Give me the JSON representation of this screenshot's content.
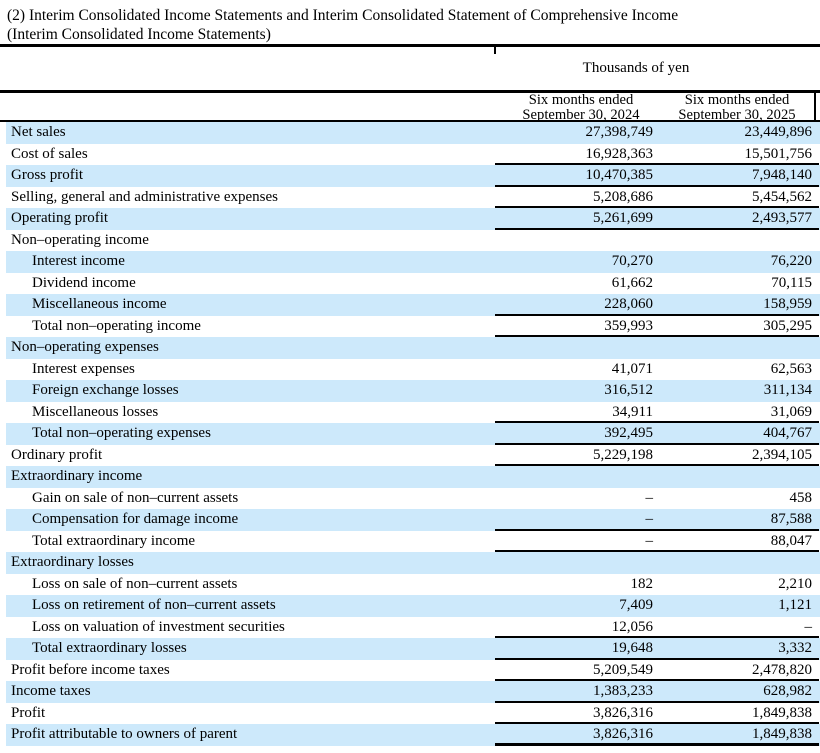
{
  "title": {
    "line1": "(2) Interim Consolidated Income Statements and Interim Consolidated Statement of Comprehensive Income",
    "line2": "(Interim Consolidated Income Statements)"
  },
  "colors": {
    "row_shade": "#cde9fb",
    "rule": "#000000"
  },
  "table": {
    "unit_label": "Thousands of yen",
    "columns": [
      {
        "line1": "Six months ended",
        "line2": "September 30, 2024"
      },
      {
        "line1": "Six months ended",
        "line2": "September 30, 2025"
      }
    ],
    "rows": [
      {
        "label": "Net sales",
        "v2024": "27,398,749",
        "v2025": "23,449,896",
        "indent": false,
        "shaded": true,
        "section": false,
        "rule": "none"
      },
      {
        "label": "Cost of sales",
        "v2024": "16,928,363",
        "v2025": "15,501,756",
        "indent": false,
        "shaded": false,
        "section": false,
        "rule": "thin"
      },
      {
        "label": "Gross profit",
        "v2024": "10,470,385",
        "v2025": "7,948,140",
        "indent": false,
        "shaded": true,
        "section": false,
        "rule": "thin"
      },
      {
        "label": "Selling, general and administrative expenses",
        "v2024": "5,208,686",
        "v2025": "5,454,562",
        "indent": false,
        "shaded": false,
        "section": false,
        "rule": "thin"
      },
      {
        "label": "Operating profit",
        "v2024": "5,261,699",
        "v2025": "2,493,577",
        "indent": false,
        "shaded": true,
        "section": false,
        "rule": "thin"
      },
      {
        "label": "Non–operating income",
        "v2024": "",
        "v2025": "",
        "indent": false,
        "shaded": false,
        "section": true,
        "rule": "none"
      },
      {
        "label": "Interest income",
        "v2024": "70,270",
        "v2025": "76,220",
        "indent": true,
        "shaded": true,
        "section": false,
        "rule": "none"
      },
      {
        "label": "Dividend income",
        "v2024": "61,662",
        "v2025": "70,115",
        "indent": true,
        "shaded": false,
        "section": false,
        "rule": "none"
      },
      {
        "label": "Miscellaneous income",
        "v2024": "228,060",
        "v2025": "158,959",
        "indent": true,
        "shaded": true,
        "section": false,
        "rule": "thin"
      },
      {
        "label": "Total non–operating income",
        "v2024": "359,993",
        "v2025": "305,295",
        "indent": true,
        "shaded": false,
        "section": false,
        "rule": "thin"
      },
      {
        "label": "Non–operating expenses",
        "v2024": "",
        "v2025": "",
        "indent": false,
        "shaded": true,
        "section": true,
        "rule": "none"
      },
      {
        "label": "Interest expenses",
        "v2024": "41,071",
        "v2025": "62,563",
        "indent": true,
        "shaded": false,
        "section": false,
        "rule": "none"
      },
      {
        "label": "Foreign exchange losses",
        "v2024": "316,512",
        "v2025": "311,134",
        "indent": true,
        "shaded": true,
        "section": false,
        "rule": "none"
      },
      {
        "label": "Miscellaneous losses",
        "v2024": "34,911",
        "v2025": "31,069",
        "indent": true,
        "shaded": false,
        "section": false,
        "rule": "thin"
      },
      {
        "label": "Total non–operating expenses",
        "v2024": "392,495",
        "v2025": "404,767",
        "indent": true,
        "shaded": true,
        "section": false,
        "rule": "thin"
      },
      {
        "label": "Ordinary profit",
        "v2024": "5,229,198",
        "v2025": "2,394,105",
        "indent": false,
        "shaded": false,
        "section": false,
        "rule": "thin"
      },
      {
        "label": "Extraordinary income",
        "v2024": "",
        "v2025": "",
        "indent": false,
        "shaded": true,
        "section": true,
        "rule": "none"
      },
      {
        "label": "Gain on sale of non–current assets",
        "v2024": "–",
        "v2025": "458",
        "indent": true,
        "shaded": false,
        "section": false,
        "rule": "none"
      },
      {
        "label": "Compensation for damage income",
        "v2024": "–",
        "v2025": "87,588",
        "indent": true,
        "shaded": true,
        "section": false,
        "rule": "thin"
      },
      {
        "label": "Total extraordinary income",
        "v2024": "–",
        "v2025": "88,047",
        "indent": true,
        "shaded": false,
        "section": false,
        "rule": "thin"
      },
      {
        "label": "Extraordinary losses",
        "v2024": "",
        "v2025": "",
        "indent": false,
        "shaded": true,
        "section": true,
        "rule": "none"
      },
      {
        "label": "Loss on sale of non–current assets",
        "v2024": "182",
        "v2025": "2,210",
        "indent": true,
        "shaded": false,
        "section": false,
        "rule": "none"
      },
      {
        "label": "Loss on retirement of non–current assets",
        "v2024": "7,409",
        "v2025": "1,121",
        "indent": true,
        "shaded": true,
        "section": false,
        "rule": "none"
      },
      {
        "label": "Loss on valuation of investment securities",
        "v2024": "12,056",
        "v2025": "–",
        "indent": true,
        "shaded": false,
        "section": false,
        "rule": "thin"
      },
      {
        "label": "Total extraordinary losses",
        "v2024": "19,648",
        "v2025": "3,332",
        "indent": true,
        "shaded": true,
        "section": false,
        "rule": "thin"
      },
      {
        "label": "Profit before income taxes",
        "v2024": "5,209,549",
        "v2025": "2,478,820",
        "indent": false,
        "shaded": false,
        "section": false,
        "rule": "thin"
      },
      {
        "label": "Income taxes",
        "v2024": "1,383,233",
        "v2025": "628,982",
        "indent": false,
        "shaded": true,
        "section": false,
        "rule": "thin"
      },
      {
        "label": "Profit",
        "v2024": "3,826,316",
        "v2025": "1,849,838",
        "indent": false,
        "shaded": false,
        "section": false,
        "rule": "thin"
      },
      {
        "label": "Profit attributable to owners of parent",
        "v2024": "3,826,316",
        "v2025": "1,849,838",
        "indent": false,
        "shaded": true,
        "section": false,
        "rule": "thick"
      }
    ]
  }
}
